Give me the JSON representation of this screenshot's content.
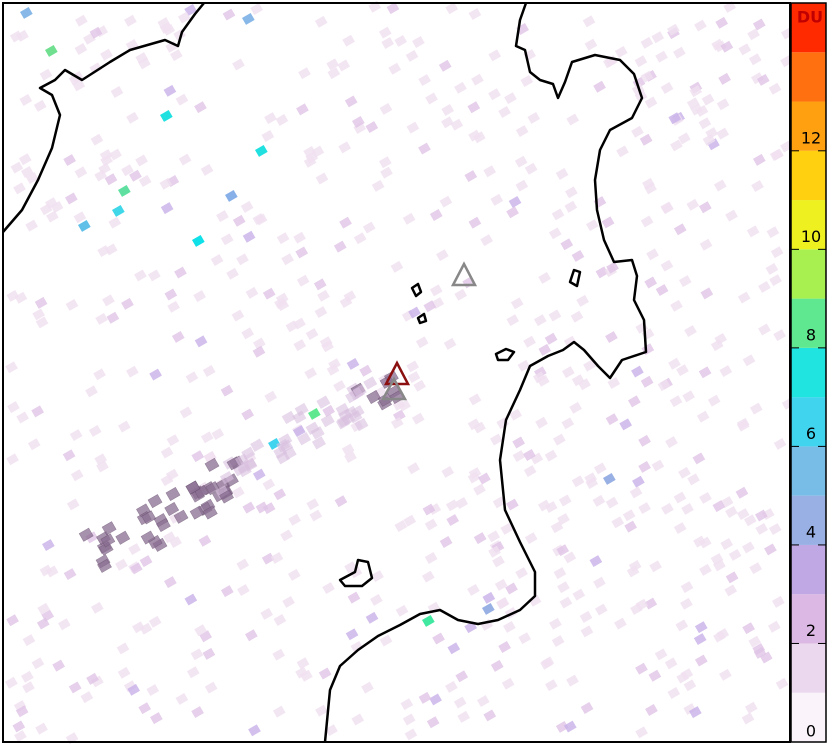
{
  "colorbar": {
    "label": "DU",
    "range": [
      0,
      15
    ],
    "ticks": [
      0,
      2,
      4,
      6,
      8,
      10,
      12
    ],
    "colors": [
      "#faf4fa",
      "#ecd8ee",
      "#dcb8e4",
      "#c0a8e4",
      "#98b0e4",
      "#78bce8",
      "#40d4ee",
      "#20e4e0",
      "#60e890",
      "#a8f050",
      "#eef020",
      "#ffd010",
      "#ffa010",
      "#ff7010",
      "#ff2a00"
    ]
  }
}
